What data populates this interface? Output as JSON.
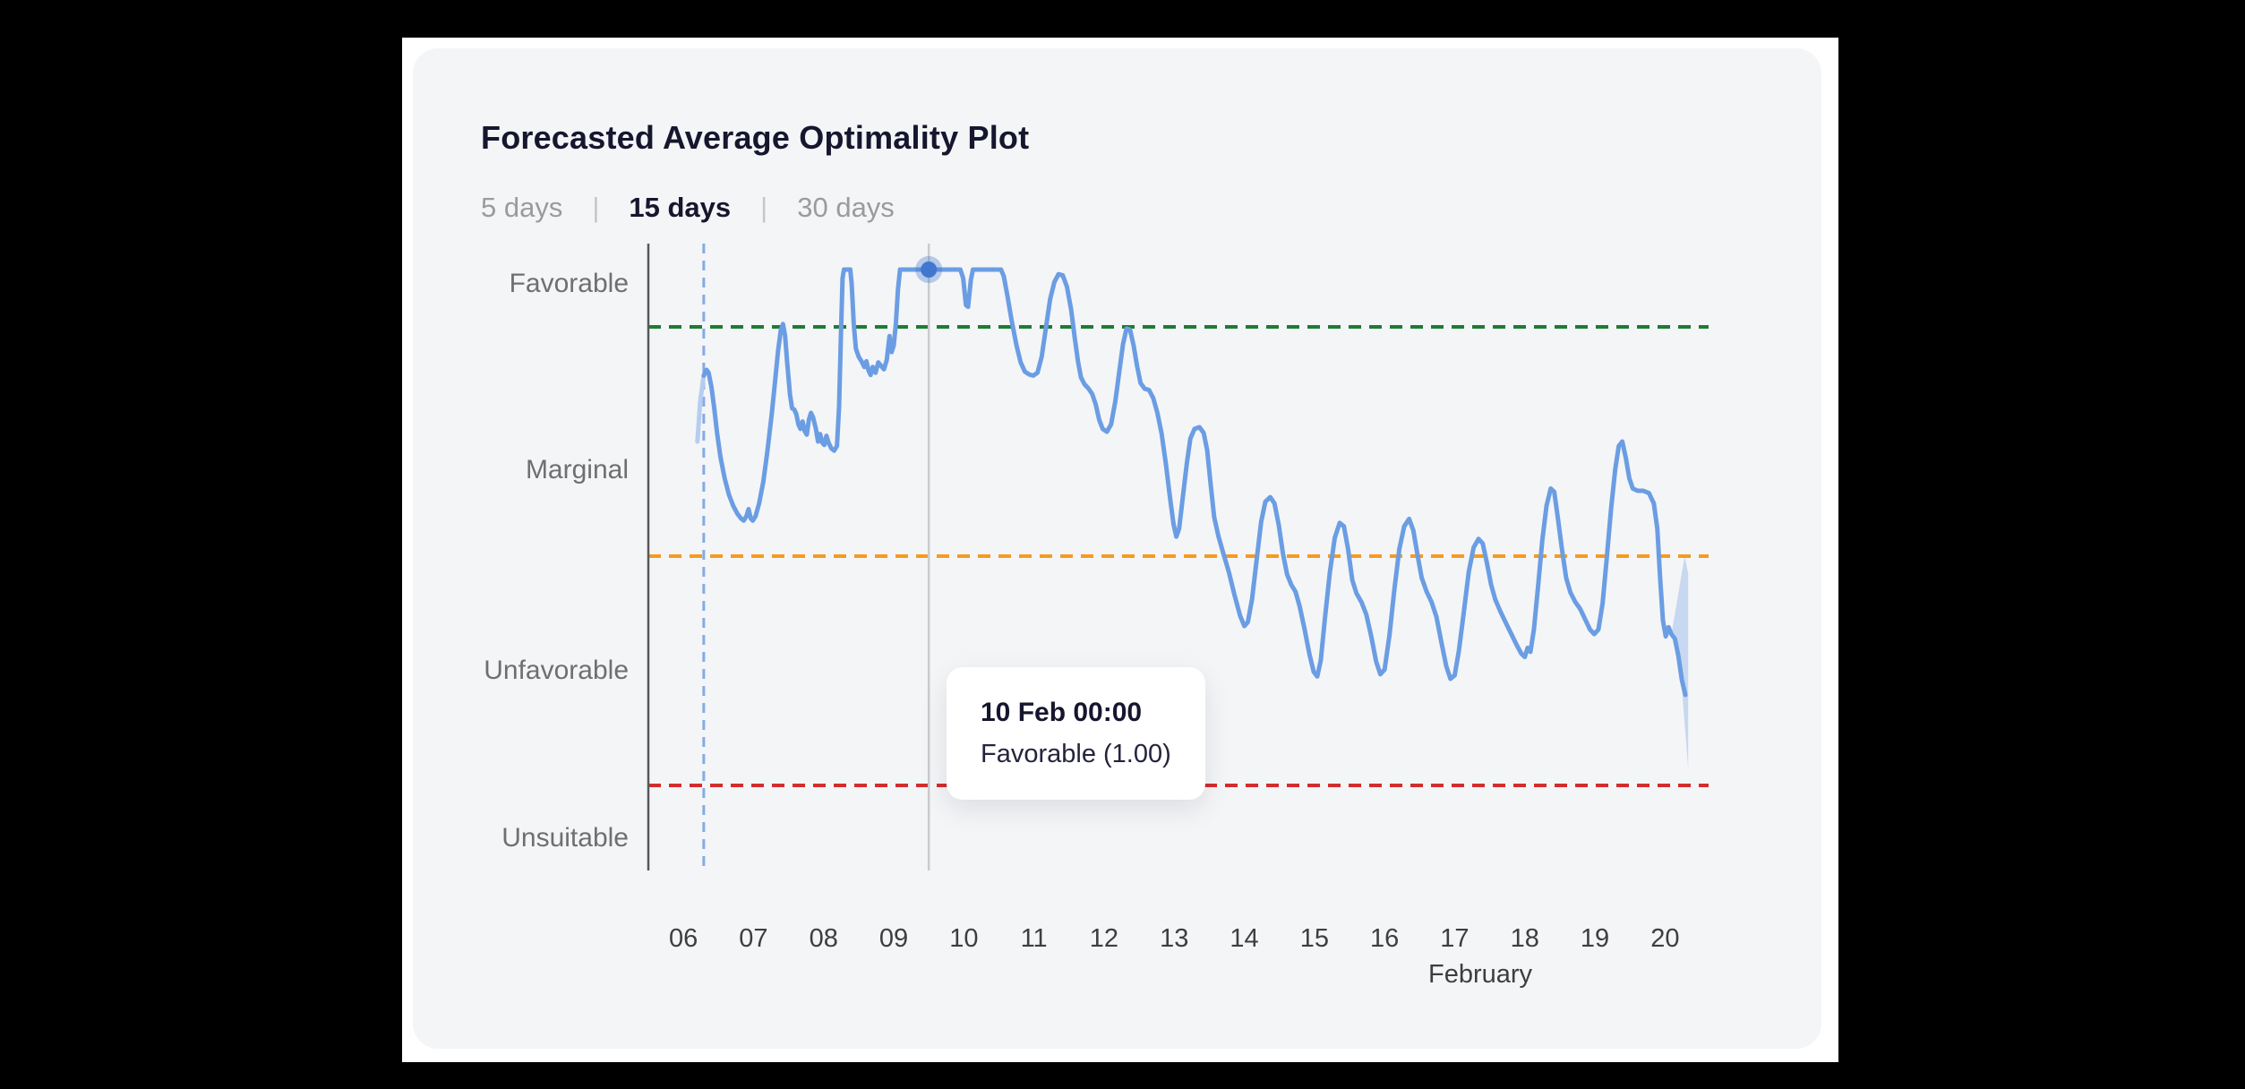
{
  "header": {
    "title": "Forecasted Average Optimality Plot"
  },
  "tabs": {
    "separator": "|",
    "items": [
      {
        "label": "5 days",
        "active": false
      },
      {
        "label": "15 days",
        "active": true
      },
      {
        "label": "30 days",
        "active": false
      }
    ]
  },
  "tooltip": {
    "title": "10 Feb 00:00",
    "body": "Favorable (1.00)"
  },
  "colors": {
    "background": "#000000",
    "page": "#FFFFFF",
    "card": "#F4F5F7",
    "title_text": "#16162E",
    "tab_inactive": "#9B9B9B",
    "tab_active": "#16162E",
    "y_label": "#6F6F6F",
    "x_label": "#3E3E3E",
    "axis": "#58585C",
    "hover_line": "#CBCBCD",
    "now_line": "#84ABE4",
    "threshold_green": "#1D7C33",
    "threshold_orange": "#F59B1E",
    "threshold_red": "#D22D2D",
    "forecast_line": "#6B9DE3",
    "past_line": "#B5CDF0",
    "marker_core": "#4377CE",
    "marker_halo": "rgba(67,119,206,0.35)",
    "uncertainty_band": "rgba(107,157,227,0.32)"
  },
  "chart_data": {
    "type": "line",
    "title": "Forecasted Average Optimality Plot",
    "xlabel": "February",
    "x_ticks": [
      "06",
      "07",
      "08",
      "09",
      "10",
      "11",
      "12",
      "13",
      "14",
      "15",
      "16",
      "17",
      "18",
      "19",
      "20"
    ],
    "x_tick_days": [
      6,
      7,
      8,
      9,
      10,
      11,
      12,
      13,
      14,
      15,
      16,
      17,
      18,
      19,
      20
    ],
    "x_tick_position_day_fraction": 0.5,
    "xlim_days": [
      6.0,
      20.95
    ],
    "ylim": [
      -0.05,
      1.045
    ],
    "grid": false,
    "legend_position": "none",
    "y_zone_labels": [
      {
        "label": "Favorable",
        "value": 0.973
      },
      {
        "label": "Marginal",
        "value": 0.648
      },
      {
        "label": "Unfavorable",
        "value": 0.298
      },
      {
        "label": "Unsuitable",
        "value": 0.006
      }
    ],
    "thresholds": [
      {
        "name": "favorable-threshold",
        "value": 0.9,
        "color": "#1D7C33"
      },
      {
        "name": "marginal-threshold",
        "value": 0.5,
        "color": "#F59B1E"
      },
      {
        "name": "unfavorable-threshold",
        "value": 0.1,
        "color": "#D22D2D"
      }
    ],
    "now_marker_day": 6.79,
    "hover_day": 10.0,
    "selected_point": {
      "day": 10.0,
      "value": 1.0,
      "datetime": "10 Feb 00:00",
      "label": "Favorable (1.00)"
    },
    "series": [
      {
        "name": "past",
        "style": "faded",
        "points": [
          [
            6.7,
            0.7
          ],
          [
            6.74,
            0.77
          ],
          [
            6.79,
            0.815
          ]
        ]
      },
      {
        "name": "forecast",
        "style": "solid",
        "points": [
          [
            6.79,
            0.815
          ],
          [
            6.83,
            0.825
          ],
          [
            6.86,
            0.82
          ],
          [
            6.9,
            0.795
          ],
          [
            6.94,
            0.758
          ],
          [
            6.98,
            0.715
          ],
          [
            7.03,
            0.672
          ],
          [
            7.09,
            0.635
          ],
          [
            7.15,
            0.607
          ],
          [
            7.21,
            0.588
          ],
          [
            7.27,
            0.574
          ],
          [
            7.32,
            0.566
          ],
          [
            7.36,
            0.562
          ],
          [
            7.4,
            0.57
          ],
          [
            7.43,
            0.582
          ],
          [
            7.46,
            0.566
          ],
          [
            7.49,
            0.562
          ],
          [
            7.53,
            0.57
          ],
          [
            7.58,
            0.592
          ],
          [
            7.64,
            0.63
          ],
          [
            7.7,
            0.685
          ],
          [
            7.76,
            0.748
          ],
          [
            7.81,
            0.808
          ],
          [
            7.85,
            0.858
          ],
          [
            7.89,
            0.895
          ],
          [
            7.92,
            0.905
          ],
          [
            7.95,
            0.885
          ],
          [
            7.98,
            0.838
          ],
          [
            8.02,
            0.782
          ],
          [
            8.05,
            0.758
          ],
          [
            8.08,
            0.756
          ],
          [
            8.11,
            0.748
          ],
          [
            8.14,
            0.73
          ],
          [
            8.17,
            0.722
          ],
          [
            8.2,
            0.735
          ],
          [
            8.23,
            0.718
          ],
          [
            8.26,
            0.712
          ],
          [
            8.29,
            0.738
          ],
          [
            8.32,
            0.75
          ],
          [
            8.35,
            0.742
          ],
          [
            8.39,
            0.722
          ],
          [
            8.42,
            0.7
          ],
          [
            8.45,
            0.713
          ],
          [
            8.48,
            0.698
          ],
          [
            8.51,
            0.694
          ],
          [
            8.54,
            0.71
          ],
          [
            8.57,
            0.698
          ],
          [
            8.61,
            0.688
          ],
          [
            8.65,
            0.684
          ],
          [
            8.69,
            0.692
          ],
          [
            8.72,
            0.76
          ],
          [
            8.75,
            0.9
          ],
          [
            8.77,
            0.985
          ],
          [
            8.79,
            1.0
          ],
          [
            8.88,
            1.0
          ],
          [
            8.9,
            0.975
          ],
          [
            8.93,
            0.905
          ],
          [
            8.96,
            0.862
          ],
          [
            9.0,
            0.848
          ],
          [
            9.04,
            0.84
          ],
          [
            9.08,
            0.83
          ],
          [
            9.11,
            0.84
          ],
          [
            9.14,
            0.824
          ],
          [
            9.17,
            0.816
          ],
          [
            9.2,
            0.83
          ],
          [
            9.24,
            0.82
          ],
          [
            9.28,
            0.838
          ],
          [
            9.32,
            0.832
          ],
          [
            9.36,
            0.826
          ],
          [
            9.4,
            0.842
          ],
          [
            9.44,
            0.884
          ],
          [
            9.47,
            0.856
          ],
          [
            9.5,
            0.868
          ],
          [
            9.53,
            0.905
          ],
          [
            9.56,
            0.965
          ],
          [
            9.59,
            1.0
          ],
          [
            10.45,
            1.0
          ],
          [
            10.49,
            0.985
          ],
          [
            10.53,
            0.938
          ],
          [
            10.56,
            0.935
          ],
          [
            10.6,
            0.982
          ],
          [
            10.63,
            1.0
          ],
          [
            11.03,
            1.0
          ],
          [
            11.07,
            0.988
          ],
          [
            11.12,
            0.955
          ],
          [
            11.18,
            0.912
          ],
          [
            11.25,
            0.868
          ],
          [
            11.31,
            0.838
          ],
          [
            11.37,
            0.822
          ],
          [
            11.43,
            0.817
          ],
          [
            11.49,
            0.815
          ],
          [
            11.55,
            0.82
          ],
          [
            11.61,
            0.848
          ],
          [
            11.67,
            0.898
          ],
          [
            11.73,
            0.948
          ],
          [
            11.79,
            0.978
          ],
          [
            11.85,
            0.992
          ],
          [
            11.91,
            0.99
          ],
          [
            11.97,
            0.97
          ],
          [
            12.03,
            0.93
          ],
          [
            12.08,
            0.882
          ],
          [
            12.13,
            0.838
          ],
          [
            12.17,
            0.812
          ],
          [
            12.22,
            0.8
          ],
          [
            12.28,
            0.792
          ],
          [
            12.33,
            0.783
          ],
          [
            12.38,
            0.765
          ],
          [
            12.43,
            0.738
          ],
          [
            12.48,
            0.722
          ],
          [
            12.54,
            0.717
          ],
          [
            12.6,
            0.73
          ],
          [
            12.66,
            0.77
          ],
          [
            12.72,
            0.825
          ],
          [
            12.77,
            0.87
          ],
          [
            12.82,
            0.897
          ],
          [
            12.87,
            0.895
          ],
          [
            12.92,
            0.868
          ],
          [
            12.97,
            0.832
          ],
          [
            13.02,
            0.802
          ],
          [
            13.08,
            0.792
          ],
          [
            13.14,
            0.79
          ],
          [
            13.2,
            0.776
          ],
          [
            13.26,
            0.75
          ],
          [
            13.32,
            0.714
          ],
          [
            13.38,
            0.662
          ],
          [
            13.44,
            0.602
          ],
          [
            13.49,
            0.556
          ],
          [
            13.53,
            0.534
          ],
          [
            13.57,
            0.548
          ],
          [
            13.62,
            0.6
          ],
          [
            13.68,
            0.662
          ],
          [
            13.73,
            0.705
          ],
          [
            13.79,
            0.722
          ],
          [
            13.86,
            0.725
          ],
          [
            13.92,
            0.715
          ],
          [
            13.97,
            0.685
          ],
          [
            14.02,
            0.625
          ],
          [
            14.07,
            0.568
          ],
          [
            14.13,
            0.535
          ],
          [
            14.2,
            0.505
          ],
          [
            14.28,
            0.472
          ],
          [
            14.36,
            0.432
          ],
          [
            14.44,
            0.396
          ],
          [
            14.5,
            0.378
          ],
          [
            14.55,
            0.385
          ],
          [
            14.61,
            0.425
          ],
          [
            14.68,
            0.498
          ],
          [
            14.74,
            0.56
          ],
          [
            14.8,
            0.595
          ],
          [
            14.87,
            0.603
          ],
          [
            14.93,
            0.592
          ],
          [
            14.99,
            0.555
          ],
          [
            15.05,
            0.505
          ],
          [
            15.11,
            0.468
          ],
          [
            15.17,
            0.45
          ],
          [
            15.23,
            0.438
          ],
          [
            15.29,
            0.412
          ],
          [
            15.36,
            0.372
          ],
          [
            15.43,
            0.328
          ],
          [
            15.49,
            0.298
          ],
          [
            15.54,
            0.29
          ],
          [
            15.59,
            0.318
          ],
          [
            15.65,
            0.392
          ],
          [
            15.72,
            0.472
          ],
          [
            15.79,
            0.532
          ],
          [
            15.86,
            0.558
          ],
          [
            15.92,
            0.552
          ],
          [
            15.98,
            0.512
          ],
          [
            16.04,
            0.458
          ],
          [
            16.1,
            0.435
          ],
          [
            16.17,
            0.42
          ],
          [
            16.24,
            0.398
          ],
          [
            16.31,
            0.36
          ],
          [
            16.38,
            0.316
          ],
          [
            16.44,
            0.294
          ],
          [
            16.5,
            0.302
          ],
          [
            16.57,
            0.362
          ],
          [
            16.64,
            0.442
          ],
          [
            16.71,
            0.512
          ],
          [
            16.78,
            0.552
          ],
          [
            16.85,
            0.565
          ],
          [
            16.91,
            0.545
          ],
          [
            16.97,
            0.502
          ],
          [
            17.03,
            0.462
          ],
          [
            17.1,
            0.438
          ],
          [
            17.17,
            0.42
          ],
          [
            17.24,
            0.394
          ],
          [
            17.31,
            0.35
          ],
          [
            17.38,
            0.308
          ],
          [
            17.44,
            0.286
          ],
          [
            17.5,
            0.292
          ],
          [
            17.56,
            0.335
          ],
          [
            17.63,
            0.402
          ],
          [
            17.7,
            0.472
          ],
          [
            17.77,
            0.515
          ],
          [
            17.84,
            0.53
          ],
          [
            17.9,
            0.522
          ],
          [
            17.96,
            0.488
          ],
          [
            18.02,
            0.45
          ],
          [
            18.08,
            0.424
          ],
          [
            18.15,
            0.404
          ],
          [
            18.22,
            0.386
          ],
          [
            18.3,
            0.366
          ],
          [
            18.38,
            0.346
          ],
          [
            18.45,
            0.33
          ],
          [
            18.5,
            0.324
          ],
          [
            18.54,
            0.34
          ],
          [
            18.58,
            0.333
          ],
          [
            18.63,
            0.372
          ],
          [
            18.69,
            0.448
          ],
          [
            18.75,
            0.528
          ],
          [
            18.81,
            0.588
          ],
          [
            18.87,
            0.618
          ],
          [
            18.92,
            0.612
          ],
          [
            18.97,
            0.568
          ],
          [
            19.03,
            0.512
          ],
          [
            19.09,
            0.462
          ],
          [
            19.15,
            0.437
          ],
          [
            19.22,
            0.42
          ],
          [
            19.29,
            0.408
          ],
          [
            19.36,
            0.39
          ],
          [
            19.43,
            0.372
          ],
          [
            19.49,
            0.364
          ],
          [
            19.55,
            0.372
          ],
          [
            19.61,
            0.418
          ],
          [
            19.67,
            0.498
          ],
          [
            19.73,
            0.582
          ],
          [
            19.79,
            0.652
          ],
          [
            19.84,
            0.692
          ],
          [
            19.89,
            0.7
          ],
          [
            19.94,
            0.672
          ],
          [
            19.99,
            0.636
          ],
          [
            20.04,
            0.618
          ],
          [
            20.11,
            0.614
          ],
          [
            20.19,
            0.614
          ],
          [
            20.27,
            0.61
          ],
          [
            20.34,
            0.592
          ],
          [
            20.39,
            0.548
          ],
          [
            20.43,
            0.462
          ],
          [
            20.47,
            0.388
          ],
          [
            20.51,
            0.36
          ],
          [
            20.55,
            0.376
          ],
          [
            20.59,
            0.364
          ],
          [
            20.64,
            0.356
          ],
          [
            20.69,
            0.326
          ],
          [
            20.74,
            0.284
          ],
          [
            20.79,
            0.258
          ]
        ]
      }
    ],
    "uncertainty_band": [
      [
        20.6,
        0.37
      ],
      [
        20.78,
        0.5
      ],
      [
        20.83,
        0.47
      ],
      [
        20.83,
        0.13
      ],
      [
        20.72,
        0.3
      ]
    ]
  }
}
